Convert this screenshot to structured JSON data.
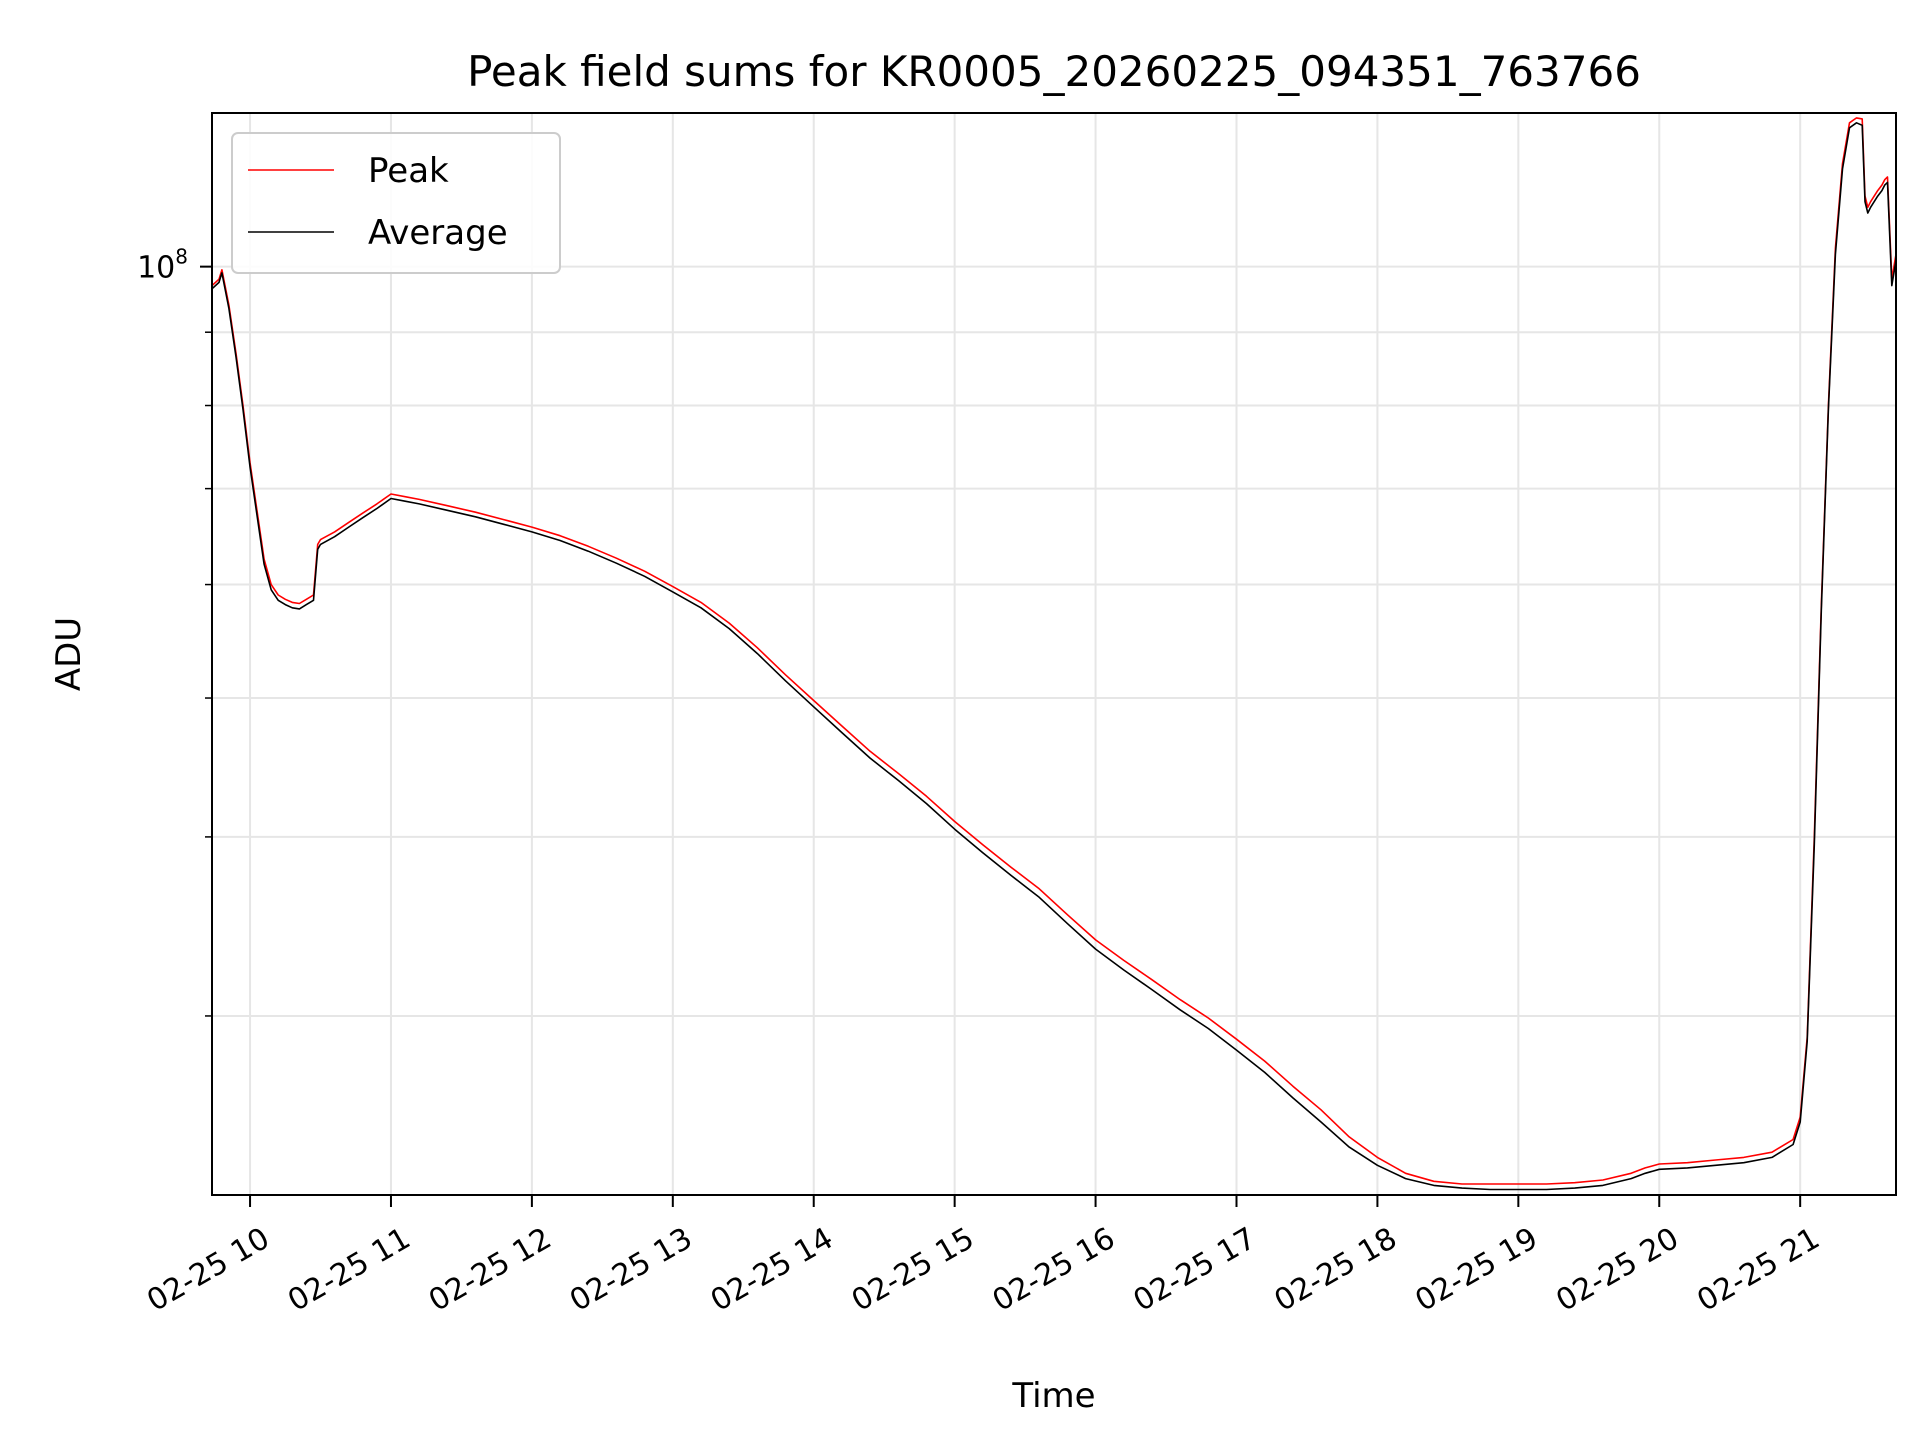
{
  "chart_data": {
    "type": "line",
    "title": "Peak field sums for KR0005_20260225_094351_763766",
    "xlabel": "Time",
    "ylabel": "ADU",
    "yscale": "log",
    "xlim": [
      9.73,
      21.68
    ],
    "ylim": [
      22500000,
      128000000
    ],
    "grid": true,
    "legend": {
      "position": "top-left",
      "entries": [
        {
          "name": "Peak",
          "color": "#ff0000"
        },
        {
          "name": "Average",
          "color": "#000000"
        }
      ]
    },
    "x_ticks": [
      {
        "value": 10,
        "label": "02-25 10"
      },
      {
        "value": 11,
        "label": "02-25 11"
      },
      {
        "value": 12,
        "label": "02-25 12"
      },
      {
        "value": 13,
        "label": "02-25 13"
      },
      {
        "value": 14,
        "label": "02-25 14"
      },
      {
        "value": 15,
        "label": "02-25 15"
      },
      {
        "value": 16,
        "label": "02-25 16"
      },
      {
        "value": 17,
        "label": "02-25 17"
      },
      {
        "value": 18,
        "label": "02-25 18"
      },
      {
        "value": 19,
        "label": "02-25 19"
      },
      {
        "value": 20,
        "label": "02-25 20"
      },
      {
        "value": 21,
        "label": "02-25 21"
      }
    ],
    "y_major_ticks": [
      {
        "value": 100000000,
        "base": "10",
        "exponent": "8"
      }
    ],
    "y_minor_ticks": [
      30000000,
      40000000,
      50000000,
      60000000,
      70000000,
      80000000,
      90000000
    ],
    "series": [
      {
        "name": "Peak",
        "color": "#ff0000",
        "x": [
          9.73,
          9.78,
          9.8,
          9.85,
          9.9,
          9.95,
          10.0,
          10.05,
          10.1,
          10.15,
          10.2,
          10.25,
          10.3,
          10.35,
          10.4,
          10.45,
          10.48,
          10.5,
          10.6,
          10.7,
          10.8,
          10.9,
          11.0,
          11.1,
          11.2,
          11.4,
          11.6,
          11.8,
          12.0,
          12.2,
          12.4,
          12.6,
          12.8,
          13.0,
          13.2,
          13.4,
          13.6,
          13.8,
          14.0,
          14.2,
          14.4,
          14.6,
          14.8,
          15.0,
          15.2,
          15.4,
          15.6,
          15.8,
          16.0,
          16.2,
          16.4,
          16.6,
          16.8,
          17.0,
          17.2,
          17.4,
          17.6,
          17.8,
          18.0,
          18.2,
          18.4,
          18.6,
          18.8,
          19.0,
          19.2,
          19.4,
          19.6,
          19.8,
          19.9,
          20.0,
          20.2,
          20.4,
          20.6,
          20.8,
          20.95,
          21.0,
          21.05,
          21.1,
          21.15,
          21.2,
          21.25,
          21.3,
          21.35,
          21.4,
          21.44,
          21.46,
          21.48,
          21.5,
          21.55,
          21.58,
          21.6,
          21.62,
          21.65,
          21.68
        ],
        "values": [
          97000000,
          98000000,
          99500000,
          94000000,
          87000000,
          80000000,
          73000000,
          67500000,
          62500000,
          60000000,
          59000000,
          58600000,
          58300000,
          58200000,
          58600000,
          59000000,
          64000000,
          64500000,
          65300000,
          66300000,
          67300000,
          68300000,
          69400000,
          69100000,
          68800000,
          68100000,
          67400000,
          66600000,
          65800000,
          64900000,
          63800000,
          62600000,
          61300000,
          59800000,
          58300000,
          56400000,
          54200000,
          51900000,
          49800000,
          47800000,
          45900000,
          44300000,
          42700000,
          41000000,
          39500000,
          38100000,
          36800000,
          35300000,
          33900000,
          32800000,
          31800000,
          30800000,
          29900000,
          28900000,
          27900000,
          26800000,
          25800000,
          24700000,
          23900000,
          23300000,
          23000000,
          22900000,
          22900000,
          22900000,
          22900000,
          22950000,
          23050000,
          23300000,
          23500000,
          23650000,
          23700000,
          23800000,
          23900000,
          24100000,
          24600000,
          25500000,
          29000000,
          40000000,
          58000000,
          80000000,
          103000000,
          118000000,
          126000000,
          127000000,
          126800000,
          112000000,
          110000000,
          111000000,
          113000000,
          114000000,
          115000000,
          115500000,
          98000000,
          102000000
        ]
      },
      {
        "name": "Average",
        "color": "#000000",
        "x": [
          9.73,
          9.78,
          9.8,
          9.85,
          9.9,
          9.95,
          10.0,
          10.05,
          10.1,
          10.15,
          10.2,
          10.25,
          10.3,
          10.35,
          10.4,
          10.45,
          10.48,
          10.5,
          10.6,
          10.7,
          10.8,
          10.9,
          11.0,
          11.1,
          11.2,
          11.4,
          11.6,
          11.8,
          12.0,
          12.2,
          12.4,
          12.6,
          12.8,
          13.0,
          13.2,
          13.4,
          13.6,
          13.8,
          14.0,
          14.2,
          14.4,
          14.6,
          14.8,
          15.0,
          15.2,
          15.4,
          15.6,
          15.8,
          16.0,
          16.2,
          16.4,
          16.6,
          16.8,
          17.0,
          17.2,
          17.4,
          17.6,
          17.8,
          18.0,
          18.2,
          18.4,
          18.6,
          18.8,
          19.0,
          19.2,
          19.4,
          19.6,
          19.8,
          19.9,
          20.0,
          20.2,
          20.4,
          20.6,
          20.8,
          20.95,
          21.0,
          21.05,
          21.1,
          21.15,
          21.2,
          21.25,
          21.3,
          21.35,
          21.4,
          21.44,
          21.46,
          21.48,
          21.5,
          21.55,
          21.58,
          21.6,
          21.62,
          21.65,
          21.68
        ],
        "values": [
          96500000,
          97500000,
          99000000,
          93500000,
          86500000,
          79500000,
          72500000,
          67000000,
          62000000,
          59500000,
          58500000,
          58100000,
          57800000,
          57700000,
          58100000,
          58500000,
          63500000,
          64000000,
          64800000,
          65800000,
          66800000,
          67800000,
          68900000,
          68600000,
          68300000,
          67600000,
          66900000,
          66100000,
          65300000,
          64400000,
          63300000,
          62100000,
          60800000,
          59300000,
          57800000,
          55900000,
          53700000,
          51400000,
          49300000,
          47300000,
          45400000,
          43800000,
          42200000,
          40500000,
          39000000,
          37600000,
          36300000,
          34800000,
          33400000,
          32300000,
          31300000,
          30300000,
          29400000,
          28400000,
          27400000,
          26300000,
          25300000,
          24300000,
          23600000,
          23100000,
          22850000,
          22750000,
          22700000,
          22700000,
          22700000,
          22750000,
          22850000,
          23100000,
          23300000,
          23450000,
          23500000,
          23600000,
          23700000,
          23900000,
          24400000,
          25300000,
          28800000,
          39500000,
          57500000,
          79500000,
          102000000,
          117000000,
          125000000,
          126000000,
          125500000,
          111000000,
          109000000,
          110000000,
          112000000,
          113000000,
          114000000,
          114500000,
          97000000,
          101000000
        ]
      }
    ]
  }
}
